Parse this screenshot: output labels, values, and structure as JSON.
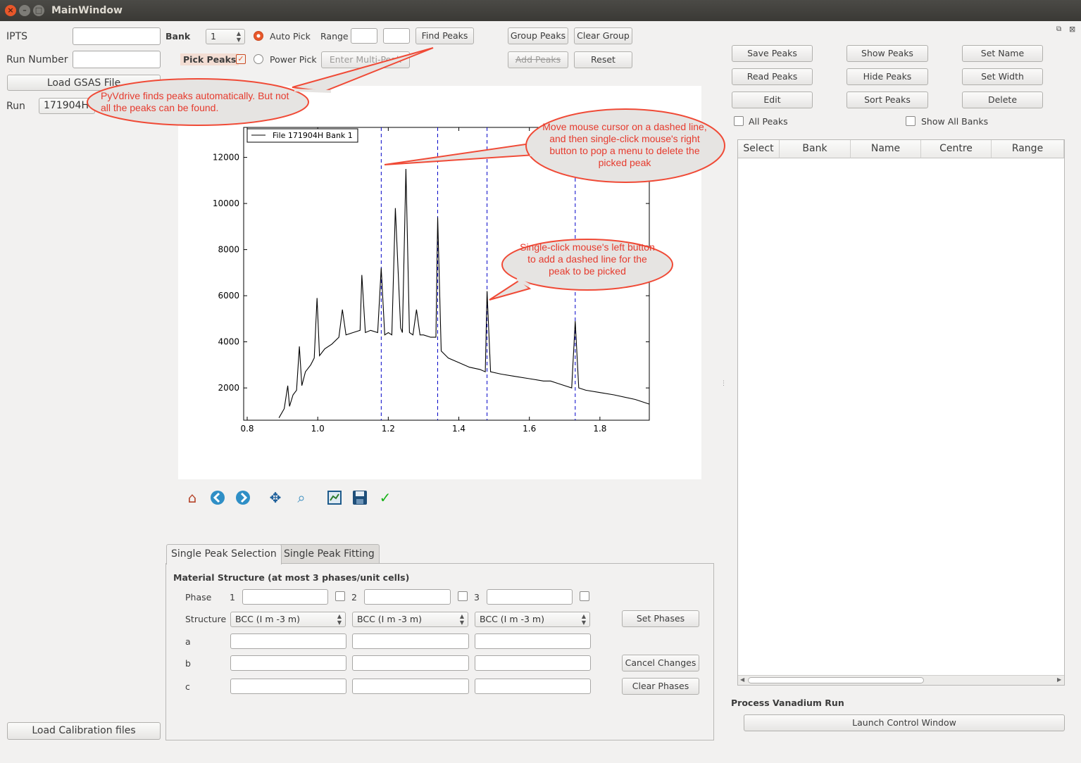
{
  "window": {
    "title": "MainWindow",
    "close": "×",
    "minimize": "–",
    "maximize": "□"
  },
  "left": {
    "ipts_label": "IPTS",
    "run_number_label": "Run Number",
    "load_gsas_button": "Load GSAS File",
    "run_label": "Run",
    "run_value": "171904H",
    "load_calibration_button": "Load Calibration files"
  },
  "toolbar": {
    "bank_label": "Bank",
    "bank_value": "1",
    "auto_pick_label": "Auto Pick",
    "range_label": "Range",
    "find_peaks_button": "Find Peaks",
    "group_peaks_button": "Group Peaks",
    "clear_group_button": "Clear Group",
    "pick_peaks_label": "Pick Peaks",
    "power_pick_label": "Power Pick",
    "enter_multi_peak_button": "Enter Multi-Peak",
    "add_peaks_button": "Add Peaks",
    "reset_button": "Reset"
  },
  "right": {
    "save_peaks": "Save Peaks",
    "show_peaks": "Show Peaks",
    "set_name": "Set Name",
    "read_peaks": "Read Peaks",
    "hide_peaks": "Hide Peaks",
    "set_width": "Set Width",
    "edit": "Edit",
    "sort_peaks": "Sort Peaks",
    "delete": "Delete",
    "all_peaks_label": "All Peaks",
    "show_all_banks_label": "Show All Banks",
    "table_headers": [
      "Select",
      "Bank",
      "Name",
      "Centre",
      "Range"
    ],
    "process_vanadium_label": "Process Vanadium Run",
    "launch_control_button": "Launch Control  Window"
  },
  "annotations": {
    "find_peaks_note": "PyVdrive finds peaks automatically. But not all the peaks can be found.",
    "delete_note": "Move mouse cursor on a dashed line, and then single-click mouse's right button to pop a menu to delete the picked peak",
    "add_note": "Single-click mouse's left button to add a dashed line for the peak to be picked"
  },
  "tabs": {
    "single_peak_selection": "Single Peak Selection",
    "single_peak_fitting": "Single Peak Fitting"
  },
  "material": {
    "title": "Material Structure (at most 3 phases/unit cells)",
    "phase_label": "Phase",
    "phase_numbers": [
      "1",
      "2",
      "3"
    ],
    "structure_label": "Structure",
    "structure_values": [
      "BCC (I m -3 m)",
      "BCC (I m -3 m)",
      "BCC (I m -3 m)"
    ],
    "a_label": "a",
    "b_label": "b",
    "c_label": "c",
    "set_phases": "Set Phases",
    "cancel_changes": "Cancel Changes",
    "clear_phases": "Clear Phases"
  },
  "chart_data": {
    "type": "line",
    "legend": "File 171904H Bank 1",
    "legend_position": "top-left",
    "xlim": [
      0.79,
      1.94
    ],
    "ylim": [
      600,
      13300
    ],
    "xticks": [
      0.8,
      1.0,
      1.2,
      1.4,
      1.6,
      1.8
    ],
    "yticks": [
      2000,
      4000,
      6000,
      8000,
      10000,
      12000
    ],
    "xtick_labels": [
      "0.8",
      "1.0",
      "1.2",
      "1.4",
      "1.6",
      "1.8"
    ],
    "ytick_labels": [
      "2000",
      "4000",
      "6000",
      "8000",
      "10000",
      "12000"
    ],
    "series": [
      {
        "color": "#000000",
        "x": [
          0.89,
          0.905,
          0.915,
          0.92,
          0.93,
          0.94,
          0.948,
          0.955,
          0.965,
          0.98,
          0.99,
          0.998,
          1.005,
          1.02,
          1.04,
          1.06,
          1.07,
          1.08,
          1.1,
          1.12,
          1.125,
          1.135,
          1.15,
          1.17,
          1.18,
          1.19,
          1.2,
          1.21,
          1.22,
          1.235,
          1.24,
          1.25,
          1.26,
          1.27,
          1.28,
          1.29,
          1.3,
          1.32,
          1.335,
          1.34,
          1.35,
          1.37,
          1.4,
          1.43,
          1.46,
          1.475,
          1.48,
          1.49,
          1.52,
          1.56,
          1.6,
          1.64,
          1.66,
          1.68,
          1.72,
          1.73,
          1.74,
          1.76,
          1.8,
          1.84,
          1.9,
          1.94
        ],
        "y": [
          700,
          1100,
          2100,
          1200,
          1700,
          1900,
          3800,
          2100,
          2700,
          3000,
          3300,
          5900,
          3400,
          3700,
          3900,
          4200,
          5400,
          4300,
          4400,
          4500,
          6900,
          4400,
          4500,
          4400,
          7200,
          4300,
          4400,
          4300,
          9800,
          4600,
          4400,
          11500,
          4400,
          4300,
          5400,
          4300,
          4300,
          4200,
          4200,
          9400,
          3600,
          3300,
          3100,
          2900,
          2800,
          2700,
          6200,
          2700,
          2600,
          2500,
          2400,
          2300,
          2300,
          2200,
          2000,
          4900,
          2000,
          1900,
          1800,
          1700,
          1500,
          1300
        ]
      }
    ],
    "picked_peaks_x": [
      1.18,
      1.34,
      1.48,
      1.73
    ]
  }
}
